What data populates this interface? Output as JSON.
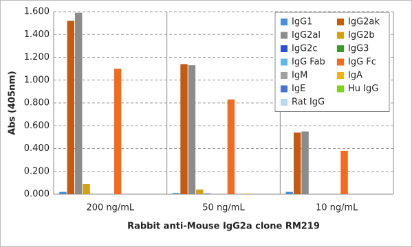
{
  "chart_data": {
    "type": "bar",
    "y_label": "Abs (405nm)",
    "x_label": "Rabbit anti-Mouse IgG2a clone RM219",
    "categories": [
      "200 ng/mL",
      "50 ng/mL",
      "10 ng/mL"
    ],
    "ylim": [
      0,
      1.6
    ],
    "yticks": [
      {
        "value": 0,
        "label": "0.000"
      },
      {
        "value": 0.2,
        "label": "0.200"
      },
      {
        "value": 0.4,
        "label": "0.400"
      },
      {
        "value": 0.6,
        "label": "0.600"
      },
      {
        "value": 0.8,
        "label": "0.800"
      },
      {
        "value": 1.0,
        "label": "1.000"
      },
      {
        "value": 1.2,
        "label": "1.200"
      },
      {
        "value": 1.4,
        "label": "1.400"
      },
      {
        "value": 1.6,
        "label": "1.600"
      }
    ],
    "grid": true,
    "legend_position": "upper right",
    "series": [
      {
        "name": "IgG1",
        "color": "#4a90d9",
        "values": [
          0.02,
          0.01,
          0.02
        ]
      },
      {
        "name": "IgG2ak",
        "color": "#c55a11",
        "values": [
          1.52,
          1.14,
          0.54
        ]
      },
      {
        "name": "IgG2al",
        "color": "#8c8c8c",
        "values": [
          1.59,
          1.13,
          0.55
        ]
      },
      {
        "name": "IgG2b",
        "color": "#d4a017",
        "values": [
          0.09,
          0.04,
          0
        ]
      },
      {
        "name": "IgG2c",
        "color": "#2e4fd0",
        "values": [
          0,
          0.005,
          0
        ]
      },
      {
        "name": "IgG3",
        "color": "#3a9a2a",
        "values": [
          0,
          0,
          0
        ]
      },
      {
        "name": "IgG Fab",
        "color": "#5fb8e8",
        "values": [
          0,
          0,
          0
        ]
      },
      {
        "name": "IgG Fc",
        "color": "#f26b21",
        "values": [
          1.1,
          0.83,
          0.38
        ]
      },
      {
        "name": "IgM",
        "color": "#a0a0a0",
        "values": [
          0,
          0,
          0
        ]
      },
      {
        "name": "IgA",
        "color": "#f0b020",
        "values": [
          0,
          0.005,
          0
        ]
      },
      {
        "name": "IgE",
        "color": "#4a70d0",
        "values": [
          0,
          0,
          0
        ]
      },
      {
        "name": "Hu IgG",
        "color": "#7ed321",
        "values": [
          0,
          0,
          0
        ]
      },
      {
        "name": "Rat IgG",
        "color": "#b8d8f0",
        "values": [
          0,
          0,
          0
        ]
      }
    ]
  }
}
